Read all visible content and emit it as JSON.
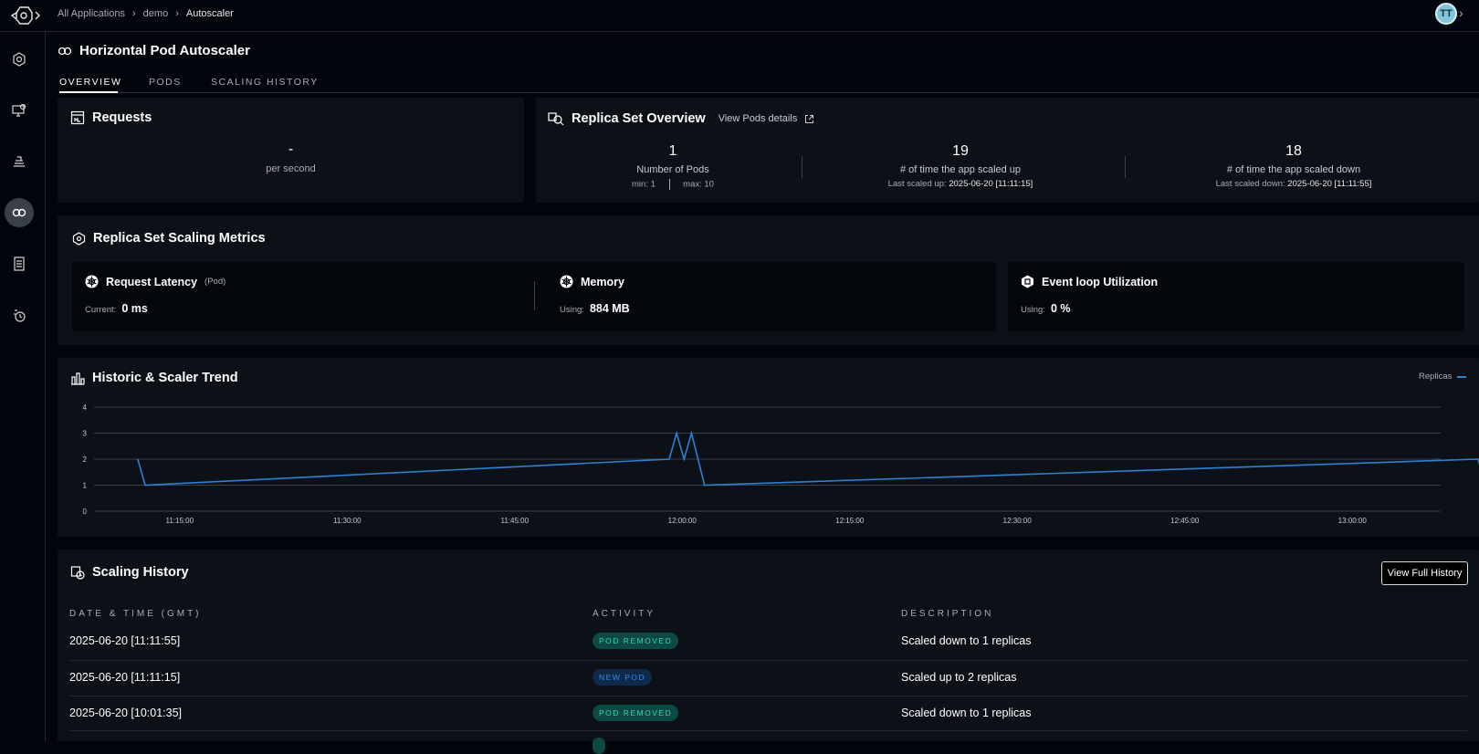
{
  "breadcrumb": {
    "items": [
      "All Applications",
      "demo",
      "Autoscaler"
    ]
  },
  "user": {
    "avatar_initials": "TT"
  },
  "page": {
    "title": "Horizontal Pod Autoscaler"
  },
  "tabs": [
    {
      "label": "OVERVIEW",
      "active": true
    },
    {
      "label": "PODS",
      "active": false
    },
    {
      "label": "SCALING HISTORY",
      "active": false
    }
  ],
  "requests": {
    "title": "Requests",
    "value": "-",
    "unit": "per second"
  },
  "replica_overview": {
    "title": "Replica Set Overview",
    "view_link": "View Pods details",
    "pods": {
      "value": "1",
      "label": "Number of Pods",
      "min": "min: 1",
      "max": "max: 10"
    },
    "scaled_up": {
      "value": "19",
      "label": "# of time the app scaled up",
      "last_label": "Last scaled up:",
      "last_value": "2025-06-20 [11:11:15]"
    },
    "scaled_down": {
      "value": "18",
      "label": "# of time the app scaled down",
      "last_label": "Last scaled down:",
      "last_value": "2025-06-20 [11:11:55]"
    }
  },
  "scaling_metrics": {
    "title": "Replica Set Scaling Metrics",
    "latency": {
      "title": "Request Latency",
      "qualifier": "(Pod)",
      "label": "Current:",
      "value": "0 ms"
    },
    "memory": {
      "title": "Memory",
      "label": "Using:",
      "value": "884 MB"
    },
    "event_loop": {
      "title": "Event loop Utilization",
      "label": "Using:",
      "value": "0 %"
    }
  },
  "trend": {
    "title": "Historic & Scaler Trend",
    "legend_label": "Replicas",
    "line_color": "#2f80d0"
  },
  "chart_data": {
    "type": "line",
    "title": "Historic & Scaler Trend",
    "ylim": [
      0,
      4
    ],
    "y_ticks": [
      "0",
      "1",
      "2",
      "3",
      "4"
    ],
    "x_tick_labels": [
      "11:15:00",
      "11:30:00",
      "11:45:00",
      "12:00:00",
      "12:15:00",
      "12:30:00",
      "12:45:00",
      "13:00:00"
    ],
    "series": [
      {
        "name": "Replicas",
        "x": [
          "11:11:15",
          "11:11:55",
          "11:58:50",
          "11:59:30",
          "12:00:10",
          "12:00:50",
          "12:02:00",
          "13:11:15",
          "13:11:55"
        ],
        "values": [
          2,
          1,
          2,
          3,
          2,
          3,
          1,
          2,
          1
        ]
      }
    ]
  },
  "history": {
    "title": "Scaling History",
    "view_full_button": "View Full History",
    "columns": [
      "DATE & TIME (GMT)",
      "ACTIVITY",
      "DESCRIPTION"
    ],
    "rows": [
      {
        "date": "2025-06-20 [11:11:55]",
        "activity": "POD REMOVED",
        "description": "Scaled down to 1 replicas"
      },
      {
        "date": "2025-06-20 [11:11:15]",
        "activity": "NEW POD",
        "description": "Scaled up to 2 replicas"
      },
      {
        "date": "2025-06-20 [10:01:35]",
        "activity": "POD REMOVED",
        "description": "Scaled down to 1 replicas"
      }
    ]
  }
}
